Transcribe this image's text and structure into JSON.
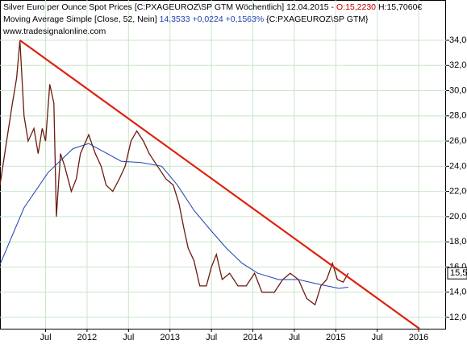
{
  "chart_data": {
    "type": "line",
    "header": {
      "line1": "Silver Euro per Ounce Spot Prices [C:PXAGEUROZ\\SP GTM  Wöchentlich] 12.04.2015 - ",
      "line1_open": "O:15,2230",
      "line1_high": " H:15,7060€",
      "line2": "Moving Average Simple [Close, 52, Nein] ",
      "line2_values": "14,3533 +0,0224 +0,1563%",
      "line2_symbol": " {C:PXAGEUROZ\\SP GTM}",
      "line3": "www.tradesignalonline.com"
    },
    "xlim": [
      2010.95,
      2016.33
    ],
    "ylim": [
      11.1,
      37.2
    ],
    "xticks": [
      {
        "value": 2011.5,
        "label": "Jul"
      },
      {
        "value": 2012,
        "label": "2012"
      },
      {
        "value": 2012.5,
        "label": "Jul"
      },
      {
        "value": 2013,
        "label": "2013"
      },
      {
        "value": 2013.5,
        "label": "Jul"
      },
      {
        "value": 2014,
        "label": "2014"
      },
      {
        "value": 2014.5,
        "label": "Jul"
      },
      {
        "value": 2015,
        "label": "2015"
      },
      {
        "value": 2015.5,
        "label": "Jul"
      },
      {
        "value": 2016,
        "label": "2016"
      }
    ],
    "yticks": [
      {
        "value": 12,
        "label": "12,00"
      },
      {
        "value": 14,
        "label": "14,00"
      },
      {
        "value": 16,
        "label": "16,00"
      },
      {
        "value": 18,
        "label": "18,00"
      },
      {
        "value": 20,
        "label": "20,00"
      },
      {
        "value": 22,
        "label": "22,00"
      },
      {
        "value": 24,
        "label": "24,00"
      },
      {
        "value": 26,
        "label": "26,00"
      },
      {
        "value": 28,
        "label": "28,00"
      },
      {
        "value": 30,
        "label": "30,00"
      },
      {
        "value": 32,
        "label": "32,00"
      },
      {
        "value": 34,
        "label": "34,00"
      }
    ],
    "grid": true,
    "series": [
      {
        "color": "#6b1a0e",
        "x": [
          2010.95,
          2011.03,
          2011.1,
          2011.15,
          2011.19,
          2011.24,
          2011.29,
          2011.36,
          2011.41,
          2011.46,
          2011.5,
          2011.55,
          2011.6,
          2011.63,
          2011.68,
          2011.73,
          2011.81,
          2011.87,
          2011.92,
          2012.02,
          2012.1,
          2012.17,
          2012.23,
          2012.31,
          2012.39,
          2012.46,
          2012.53,
          2012.6,
          2012.68,
          2012.75,
          2012.85,
          2012.95,
          2013.04,
          2013.11,
          2013.17,
          2013.22,
          2013.29,
          2013.36,
          2013.44,
          2013.5,
          2013.56,
          2013.63,
          2013.72,
          2013.82,
          2013.92,
          2014.02,
          2014.11,
          2014.26,
          2014.36,
          2014.45,
          2014.55,
          2014.65,
          2014.75,
          2014.82,
          2014.89,
          2014.96,
          2015.02,
          2015.09,
          2015.15
        ],
        "values": [
          22.5,
          26,
          29,
          31,
          34,
          28,
          26,
          27,
          25,
          27,
          26,
          30.5,
          29,
          20,
          25,
          24,
          22,
          23,
          25,
          26.5,
          25,
          24,
          22.5,
          22,
          23,
          24,
          26,
          26.8,
          26,
          25,
          24,
          23,
          22.5,
          21,
          19,
          17.5,
          16.5,
          14.5,
          14.5,
          16,
          17,
          15,
          15.5,
          14.5,
          14.5,
          15.5,
          14,
          14,
          15,
          15.5,
          15,
          13.5,
          13,
          14.5,
          15,
          16.3,
          15,
          14.8,
          15.5
        ]
      },
      {
        "color": "#1f3fb0",
        "x": [
          2010.95,
          2011.24,
          2011.53,
          2011.83,
          2012.02,
          2012.41,
          2012.65,
          2012.9,
          2013.09,
          2013.29,
          2013.48,
          2013.68,
          2013.87,
          2014.06,
          2014.31,
          2014.55,
          2014.75,
          2015.04,
          2015.15
        ],
        "values": [
          16.2,
          20.7,
          23.5,
          25.4,
          25.8,
          24.4,
          24.3,
          24.0,
          22.5,
          20.5,
          19.0,
          17.5,
          16.3,
          15.5,
          15.0,
          15.0,
          14.7,
          14.3,
          14.4
        ]
      }
    ],
    "trendline": {
      "x": [
        2011.19,
        2016.01
      ],
      "values": [
        34,
        11.1
      ],
      "color": "#e02010"
    },
    "last_price": {
      "value": 15.5,
      "label": "15,5"
    }
  }
}
